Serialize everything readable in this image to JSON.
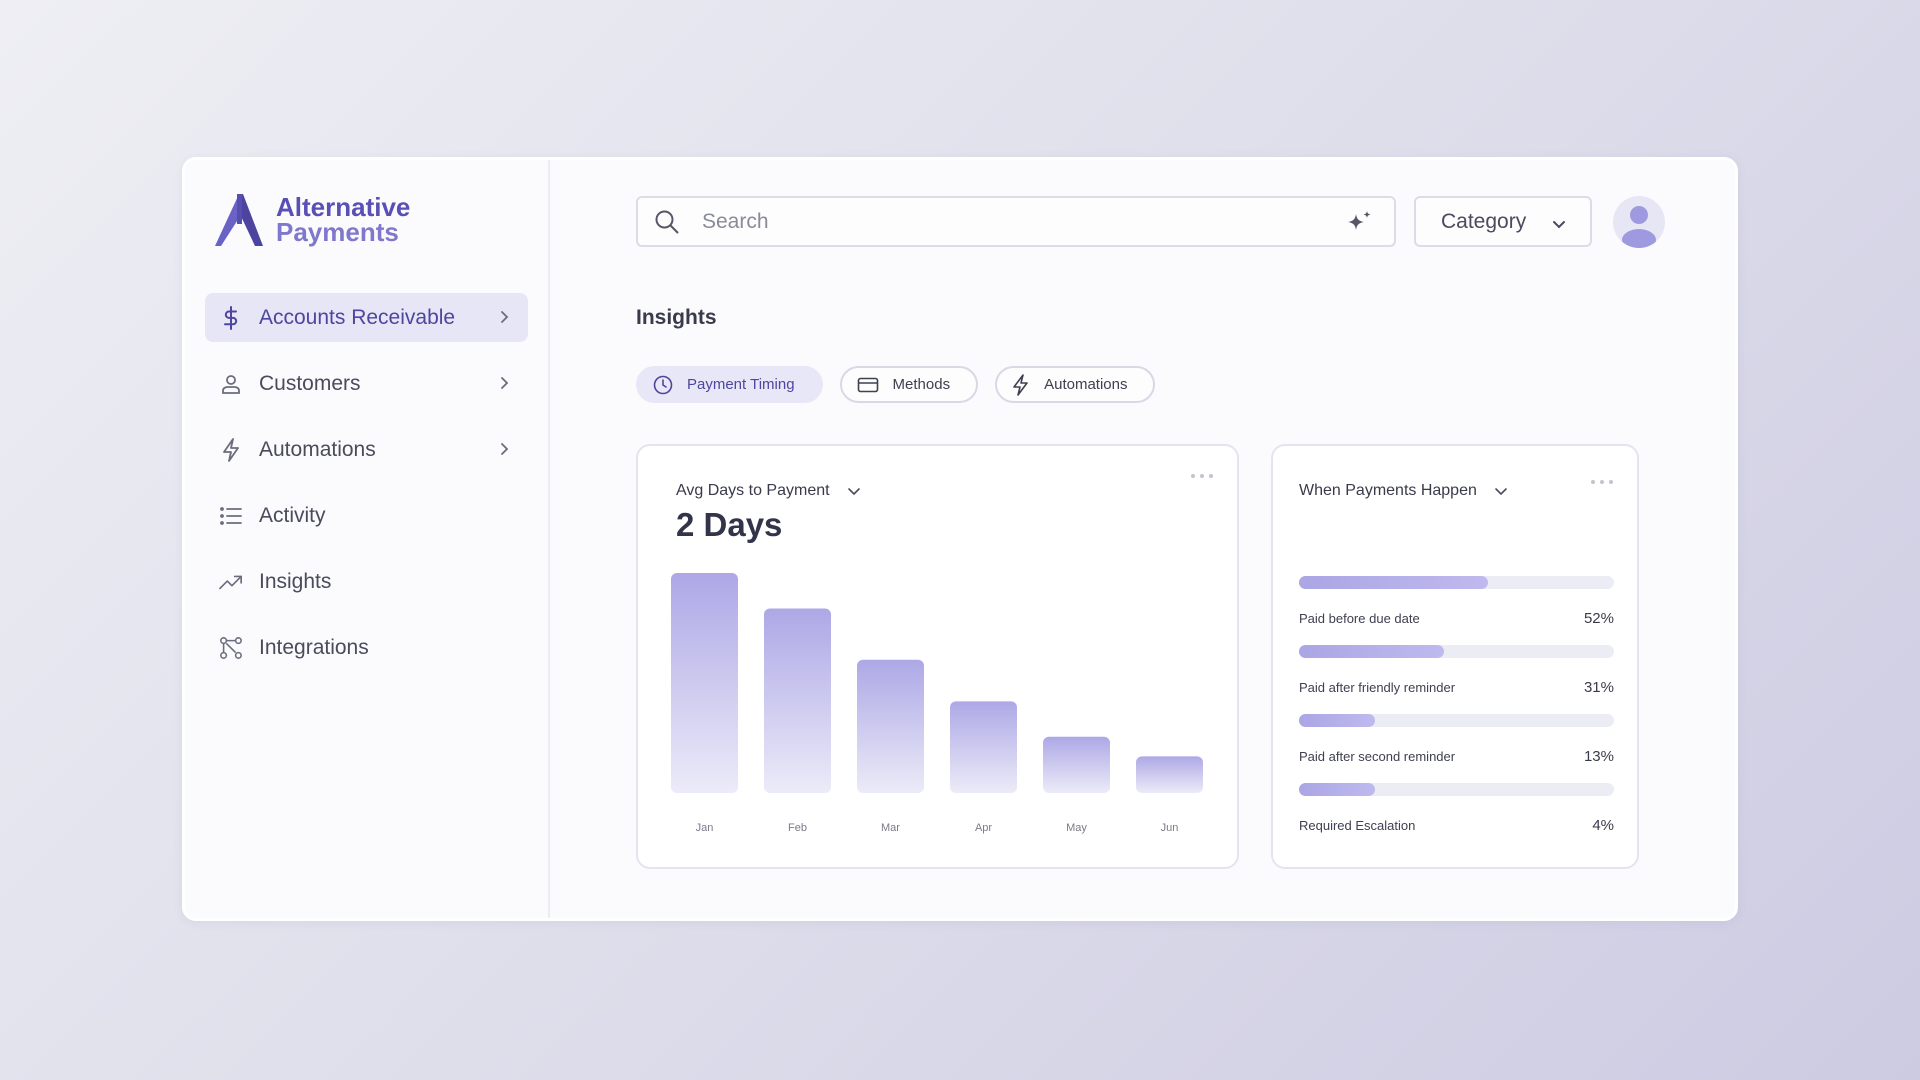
{
  "brand": {
    "line1": "Alternative",
    "line2": "Payments",
    "color": "#5a4fb4"
  },
  "nav": [
    {
      "label": "Accounts Receivable",
      "icon": "dollar-icon",
      "active": true,
      "chevron": true
    },
    {
      "label": "Customers",
      "icon": "user-icon",
      "active": false,
      "chevron": true
    },
    {
      "label": "Automations",
      "icon": "lightning-icon",
      "active": false,
      "chevron": true
    },
    {
      "label": "Activity",
      "icon": "list-icon",
      "active": false,
      "chevron": false
    },
    {
      "label": "Insights",
      "icon": "trending-up-icon",
      "active": false,
      "chevron": false
    },
    {
      "label": "Integrations",
      "icon": "integrations-icon",
      "active": false,
      "chevron": false
    }
  ],
  "header": {
    "search_placeholder": "Search",
    "category_label": "Category"
  },
  "page": {
    "title": "Insights"
  },
  "tabs": [
    {
      "label": "Payment Timing",
      "icon": "clock-icon",
      "active": true
    },
    {
      "label": "Methods",
      "icon": "credit-card-icon",
      "active": false
    },
    {
      "label": "Automations",
      "icon": "lightning-icon",
      "active": false
    }
  ],
  "avg_card": {
    "title": "Avg Days to Payment",
    "value": "2 Days"
  },
  "chart_data": {
    "type": "bar",
    "categories": [
      "Jan",
      "Feb",
      "Mar",
      "Apr",
      "May",
      "Jun"
    ],
    "values": [
      180,
      151,
      109,
      75,
      46,
      30
    ],
    "ylim": [
      0,
      180
    ]
  },
  "when_card": {
    "title": "When Payments Happen",
    "items": [
      {
        "label": "Paid before due date",
        "pct": "52%",
        "fill": 0.6
      },
      {
        "label": "Paid after friendly reminder",
        "pct": "31%",
        "fill": 0.46
      },
      {
        "label": "Paid after second reminder",
        "pct": "13%",
        "fill": 0.24
      },
      {
        "label": "Required Escalation",
        "pct": "4%",
        "fill": 0.24
      }
    ]
  },
  "colors": {
    "accent": "#5a4fb4",
    "accent_light": "#a8a3e3",
    "active_bg": "#e7e6f6"
  }
}
